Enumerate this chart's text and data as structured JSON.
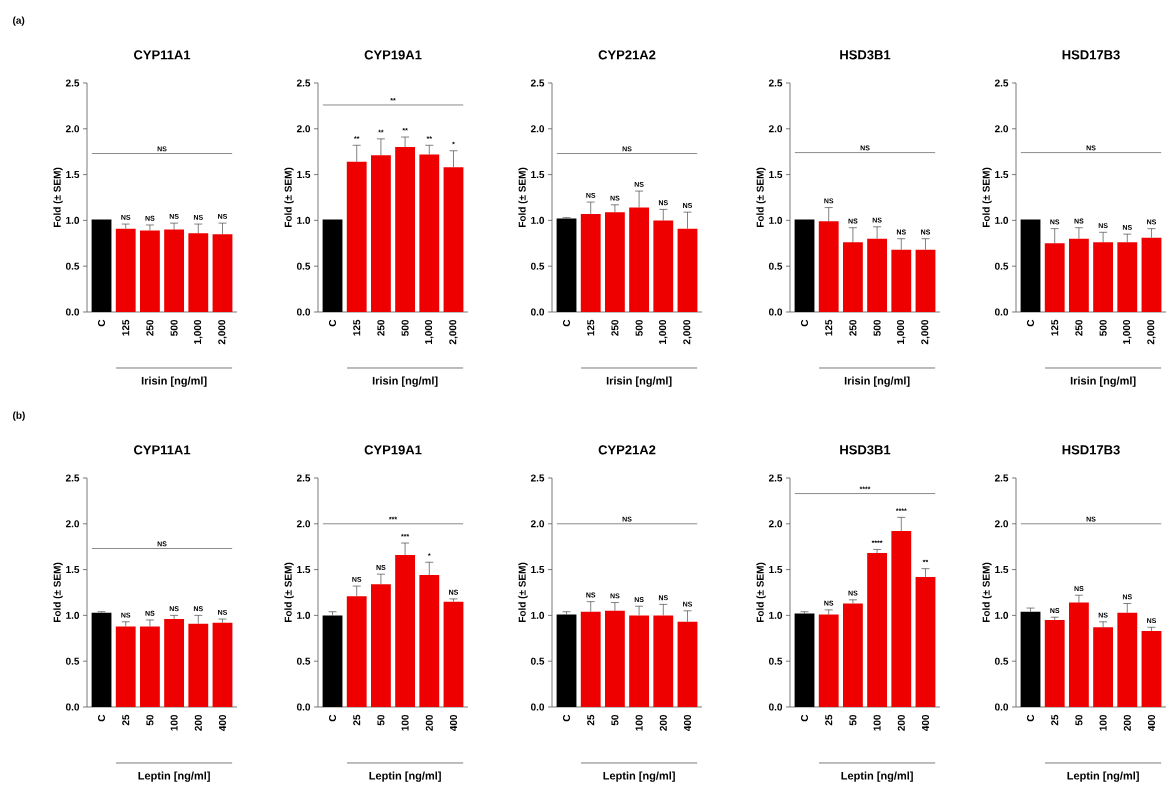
{
  "chart_data": [
    {
      "type": "bar",
      "title": "CYP11A1",
      "ylabel": "Fold (± SEM)",
      "xlabel": "Irisin [ng/ml]",
      "categories": [
        "C",
        "125",
        "250",
        "500",
        "1,000",
        "2,000"
      ],
      "values": [
        1.01,
        0.91,
        0.89,
        0.9,
        0.86,
        0.85
      ],
      "colors": [
        "#000000",
        "#ee0000",
        "#ee0000",
        "#ee0000",
        "#ee0000",
        "#ee0000"
      ],
      "errors": [
        null,
        0.05,
        0.06,
        0.07,
        0.1,
        0.12
      ],
      "ylim": [
        0,
        2.5
      ],
      "yticks": [
        {
          "value": 0,
          "label": "0.0"
        },
        {
          "value": 0.5,
          "label": "0.5"
        },
        {
          "value": 1,
          "label": "1.0"
        },
        {
          "value": 1.5,
          "label": "1.5"
        },
        {
          "value": 2,
          "label": "2.0"
        },
        {
          "value": 2.5,
          "label": "2.5"
        }
      ],
      "ref_lines": [
        {
          "axis": "y",
          "value": 1.73,
          "label": "NS"
        }
      ],
      "annotations": [
        "(a)",
        {
          "text": "NS",
          "x": "125",
          "y": 0.96
        },
        {
          "text": "NS",
          "x": "250",
          "y": 0.95
        },
        {
          "text": "NS",
          "x": "500",
          "y": 0.97
        },
        {
          "text": "NS",
          "x": "1,000",
          "y": 0.96
        },
        {
          "text": "NS",
          "x": "2,000",
          "y": 0.97
        }
      ]
    },
    {
      "type": "bar",
      "title": "CYP19A1",
      "ylabel": "Fold (± SEM)",
      "xlabel": "Irisin [ng/ml]",
      "categories": [
        "C",
        "125",
        "250",
        "500",
        "1,000",
        "2,000"
      ],
      "values": [
        1.01,
        1.64,
        1.71,
        1.8,
        1.72,
        1.58
      ],
      "colors": [
        "#000000",
        "#ee0000",
        "#ee0000",
        "#ee0000",
        "#ee0000",
        "#ee0000"
      ],
      "errors": [
        null,
        0.18,
        0.18,
        0.11,
        0.1,
        0.18
      ],
      "ylim": [
        0,
        2.5
      ],
      "yticks": [
        {
          "value": 0,
          "label": "0.0"
        },
        {
          "value": 0.5,
          "label": "0.5"
        },
        {
          "value": 1,
          "label": "1.0"
        },
        {
          "value": 1.5,
          "label": "1.5"
        },
        {
          "value": 2,
          "label": "2.0"
        },
        {
          "value": 2.5,
          "label": "2.5"
        }
      ],
      "ref_lines": [
        {
          "axis": "y",
          "value": 2.26,
          "label": "**"
        }
      ],
      "annotations": [
        {
          "text": "**",
          "x": "125",
          "y": 1.82
        },
        {
          "text": "**",
          "x": "250",
          "y": 1.89
        },
        {
          "text": "**",
          "x": "500",
          "y": 1.91
        },
        {
          "text": "**",
          "x": "1,000",
          "y": 1.82
        },
        {
          "text": "*",
          "x": "2,000",
          "y": 1.76
        }
      ]
    },
    {
      "type": "bar",
      "title": "CYP21A2",
      "ylabel": "Fold (± SEM)",
      "xlabel": "Irisin [ng/ml]",
      "categories": [
        "C",
        "125",
        "250",
        "500",
        "1,000",
        "2,000"
      ],
      "values": [
        1.02,
        1.07,
        1.09,
        1.14,
        1.0,
        0.91
      ],
      "colors": [
        "#000000",
        "#ee0000",
        "#ee0000",
        "#ee0000",
        "#ee0000",
        "#ee0000"
      ],
      "errors": [
        0.01,
        0.13,
        0.08,
        0.18,
        0.12,
        0.18
      ],
      "ylim": [
        0,
        2.5
      ],
      "yticks": [
        {
          "value": 0,
          "label": "0.0"
        },
        {
          "value": 0.5,
          "label": "0.5"
        },
        {
          "value": 1,
          "label": "1.0"
        },
        {
          "value": 1.5,
          "label": "1.5"
        },
        {
          "value": 2,
          "label": "2.0"
        },
        {
          "value": 2.5,
          "label": "2.5"
        }
      ],
      "ref_lines": [
        {
          "axis": "y",
          "value": 1.73,
          "label": "NS"
        }
      ],
      "annotations": [
        {
          "text": "NS",
          "x": "125",
          "y": 1.2
        },
        {
          "text": "NS",
          "x": "250",
          "y": 1.17
        },
        {
          "text": "NS",
          "x": "500",
          "y": 1.32
        },
        {
          "text": "NS",
          "x": "1,000",
          "y": 1.12
        },
        {
          "text": "NS",
          "x": "2,000",
          "y": 1.09
        }
      ]
    },
    {
      "type": "bar",
      "title": "HSD3B1",
      "ylabel": "Fold (± SEM)",
      "xlabel": "Irisin [ng/ml]",
      "categories": [
        "C",
        "125",
        "250",
        "500",
        "1,000",
        "2,000"
      ],
      "values": [
        1.01,
        0.99,
        0.76,
        0.8,
        0.68,
        0.68
      ],
      "colors": [
        "#000000",
        "#ee0000",
        "#ee0000",
        "#ee0000",
        "#ee0000",
        "#ee0000"
      ],
      "errors": [
        null,
        0.15,
        0.16,
        0.13,
        0.12,
        0.12
      ],
      "ylim": [
        0,
        2.5
      ],
      "yticks": [
        {
          "value": 0,
          "label": "0.0"
        },
        {
          "value": 0.5,
          "label": "0.5"
        },
        {
          "value": 1,
          "label": "1.0"
        },
        {
          "value": 1.5,
          "label": "1.5"
        },
        {
          "value": 2,
          "label": "2.0"
        },
        {
          "value": 2.5,
          "label": "2.5"
        }
      ],
      "ref_lines": [
        {
          "axis": "y",
          "value": 1.74,
          "label": "NS"
        }
      ],
      "annotations": [
        {
          "text": "NS",
          "x": "125",
          "y": 1.14
        },
        {
          "text": "NS",
          "x": "250",
          "y": 0.92
        },
        {
          "text": "NS",
          "x": "500",
          "y": 0.93
        },
        {
          "text": "NS",
          "x": "1,000",
          "y": 0.8
        },
        {
          "text": "NS",
          "x": "2,000",
          "y": 0.8
        }
      ]
    },
    {
      "type": "bar",
      "title": "HSD17B3",
      "ylabel": "Fold (± SEM)",
      "xlabel": "Irisin [ng/ml]",
      "categories": [
        "C",
        "125",
        "250",
        "500",
        "1,000",
        "2,000"
      ],
      "values": [
        1.01,
        0.75,
        0.8,
        0.76,
        0.76,
        0.81
      ],
      "colors": [
        "#000000",
        "#ee0000",
        "#ee0000",
        "#ee0000",
        "#ee0000",
        "#ee0000"
      ],
      "errors": [
        null,
        0.16,
        0.12,
        0.11,
        0.09,
        0.1
      ],
      "ylim": [
        0,
        2.5
      ],
      "yticks": [
        {
          "value": 0,
          "label": "0.0"
        },
        {
          "value": 0.5,
          "label": "0.5"
        },
        {
          "value": 1,
          "label": "1.0"
        },
        {
          "value": 1.5,
          "label": "1.5"
        },
        {
          "value": 2,
          "label": "2.0"
        },
        {
          "value": 2.5,
          "label": "2.5"
        }
      ],
      "ref_lines": [
        {
          "axis": "y",
          "value": 1.74,
          "label": "NS"
        }
      ],
      "annotations": [
        {
          "text": "NS",
          "x": "125",
          "y": 0.91
        },
        {
          "text": "NS",
          "x": "250",
          "y": 0.92
        },
        {
          "text": "NS",
          "x": "500",
          "y": 0.87
        },
        {
          "text": "NS",
          "x": "1,000",
          "y": 0.85
        },
        {
          "text": "NS",
          "x": "2,000",
          "y": 0.91
        }
      ]
    },
    {
      "type": "bar",
      "title": "CYP11A1",
      "ylabel": "Fold (± SEM)",
      "xlabel": "Leptin [ng/ml]",
      "categories": [
        "C",
        "25",
        "50",
        "100",
        "200",
        "400"
      ],
      "values": [
        1.03,
        0.88,
        0.88,
        0.96,
        0.91,
        0.92
      ],
      "colors": [
        "#000000",
        "#ee0000",
        "#ee0000",
        "#ee0000",
        "#ee0000",
        "#ee0000"
      ],
      "errors": [
        0.01,
        0.05,
        0.07,
        0.04,
        0.09,
        0.04
      ],
      "ylim": [
        0,
        2.5
      ],
      "yticks": [
        {
          "value": 0,
          "label": "0.0"
        },
        {
          "value": 0.5,
          "label": "0.5"
        },
        {
          "value": 1,
          "label": "1.0"
        },
        {
          "value": 1.5,
          "label": "1.5"
        },
        {
          "value": 2,
          "label": "2.0"
        },
        {
          "value": 2.5,
          "label": "2.5"
        }
      ],
      "ref_lines": [
        {
          "axis": "y",
          "value": 1.73,
          "label": "NS"
        }
      ],
      "annotations": [
        "(b)",
        {
          "text": "NS",
          "x": "25",
          "y": 0.93
        },
        {
          "text": "NS",
          "x": "50",
          "y": 0.95
        },
        {
          "text": "NS",
          "x": "100",
          "y": 1.0
        },
        {
          "text": "NS",
          "x": "200",
          "y": 1.0
        },
        {
          "text": "NS",
          "x": "400",
          "y": 0.96
        }
      ]
    },
    {
      "type": "bar",
      "title": "CYP19A1",
      "ylabel": "Fold (± SEM)",
      "xlabel": "Leptin [ng/ml]",
      "categories": [
        "C",
        "25",
        "50",
        "100",
        "200",
        "400"
      ],
      "values": [
        1.0,
        1.21,
        1.34,
        1.66,
        1.44,
        1.15
      ],
      "colors": [
        "#000000",
        "#ee0000",
        "#ee0000",
        "#ee0000",
        "#ee0000",
        "#ee0000"
      ],
      "errors": [
        0.04,
        0.11,
        0.11,
        0.13,
        0.14,
        0.03
      ],
      "ylim": [
        0,
        2.5
      ],
      "yticks": [
        {
          "value": 0,
          "label": "0.0"
        },
        {
          "value": 0.5,
          "label": "0.5"
        },
        {
          "value": 1,
          "label": "1.0"
        },
        {
          "value": 1.5,
          "label": "1.5"
        },
        {
          "value": 2,
          "label": "2.0"
        },
        {
          "value": 2.5,
          "label": "2.5"
        }
      ],
      "ref_lines": [
        {
          "axis": "y",
          "value": 2.0,
          "label": "***"
        }
      ],
      "annotations": [
        {
          "text": "NS",
          "x": "25",
          "y": 1.32
        },
        {
          "text": "NS",
          "x": "50",
          "y": 1.45
        },
        {
          "text": "***",
          "x": "100",
          "y": 1.79
        },
        {
          "text": "*",
          "x": "200",
          "y": 1.58
        },
        {
          "text": "NS",
          "x": "400",
          "y": 1.18
        }
      ]
    },
    {
      "type": "bar",
      "title": "CYP21A2",
      "ylabel": "Fold (± SEM)",
      "xlabel": "Leptin [ng/ml]",
      "categories": [
        "C",
        "25",
        "50",
        "100",
        "200",
        "400"
      ],
      "values": [
        1.01,
        1.04,
        1.05,
        1.0,
        1.0,
        0.93
      ],
      "colors": [
        "#000000",
        "#ee0000",
        "#ee0000",
        "#ee0000",
        "#ee0000",
        "#ee0000"
      ],
      "errors": [
        0.03,
        0.11,
        0.09,
        0.1,
        0.12,
        0.12
      ],
      "ylim": [
        0,
        2.5
      ],
      "yticks": [
        {
          "value": 0,
          "label": "0.0"
        },
        {
          "value": 0.5,
          "label": "0.5"
        },
        {
          "value": 1,
          "label": "1.0"
        },
        {
          "value": 1.5,
          "label": "1.5"
        },
        {
          "value": 2,
          "label": "2.0"
        },
        {
          "value": 2.5,
          "label": "2.5"
        }
      ],
      "ref_lines": [
        {
          "axis": "y",
          "value": 2.0,
          "label": "NS"
        }
      ],
      "annotations": [
        {
          "text": "NS",
          "x": "25",
          "y": 1.15
        },
        {
          "text": "NS",
          "x": "50",
          "y": 1.14
        },
        {
          "text": "NS",
          "x": "100",
          "y": 1.1
        },
        {
          "text": "NS",
          "x": "200",
          "y": 1.12
        },
        {
          "text": "NS",
          "x": "400",
          "y": 1.05
        }
      ]
    },
    {
      "type": "bar",
      "title": "HSD3B1",
      "ylabel": "Fold (± SEM)",
      "xlabel": "Leptin [ng/ml]",
      "categories": [
        "C",
        "25",
        "50",
        "100",
        "200",
        "400"
      ],
      "values": [
        1.02,
        1.01,
        1.13,
        1.68,
        1.92,
        1.42
      ],
      "colors": [
        "#000000",
        "#ee0000",
        "#ee0000",
        "#ee0000",
        "#ee0000",
        "#ee0000"
      ],
      "errors": [
        0.02,
        0.05,
        0.04,
        0.04,
        0.15,
        0.09
      ],
      "ylim": [
        0,
        2.5
      ],
      "yticks": [
        {
          "value": 0,
          "label": "0.0"
        },
        {
          "value": 0.5,
          "label": "0.5"
        },
        {
          "value": 1,
          "label": "1.0"
        },
        {
          "value": 1.5,
          "label": "1.5"
        },
        {
          "value": 2,
          "label": "2.0"
        },
        {
          "value": 2.5,
          "label": "2.5"
        }
      ],
      "ref_lines": [
        {
          "axis": "y",
          "value": 2.33,
          "label": "****"
        }
      ],
      "annotations": [
        {
          "text": "NS",
          "x": "25",
          "y": 1.06
        },
        {
          "text": "NS",
          "x": "50",
          "y": 1.17
        },
        {
          "text": "****",
          "x": "100",
          "y": 1.72
        },
        {
          "text": "****",
          "x": "200",
          "y": 2.07
        },
        {
          "text": "**",
          "x": "400",
          "y": 1.51
        }
      ]
    },
    {
      "type": "bar",
      "title": "HSD17B3",
      "ylabel": "Fold (± SEM)",
      "xlabel": "Leptin [ng/ml]",
      "categories": [
        "C",
        "25",
        "50",
        "100",
        "200",
        "400"
      ],
      "values": [
        1.04,
        0.95,
        1.14,
        0.87,
        1.03,
        0.83
      ],
      "colors": [
        "#000000",
        "#ee0000",
        "#ee0000",
        "#ee0000",
        "#ee0000",
        "#ee0000"
      ],
      "errors": [
        0.04,
        0.03,
        0.08,
        0.06,
        0.1,
        0.04
      ],
      "ylim": [
        0,
        2.5
      ],
      "yticks": [
        {
          "value": 0,
          "label": "0.0"
        },
        {
          "value": 0.5,
          "label": "0.5"
        },
        {
          "value": 1,
          "label": "1.0"
        },
        {
          "value": 1.5,
          "label": "1.5"
        },
        {
          "value": 2,
          "label": "2.0"
        },
        {
          "value": 2.5,
          "label": "2.5"
        }
      ],
      "ref_lines": [
        {
          "axis": "y",
          "value": 2.0,
          "label": "NS"
        }
      ],
      "annotations": [
        {
          "text": "NS",
          "x": "25",
          "y": 0.98
        },
        {
          "text": "NS",
          "x": "50",
          "y": 1.22
        },
        {
          "text": "NS",
          "x": "100",
          "y": 0.93
        },
        {
          "text": "NS",
          "x": "200",
          "y": 1.13
        },
        {
          "text": "NS",
          "x": "400",
          "y": 0.87
        }
      ]
    }
  ]
}
